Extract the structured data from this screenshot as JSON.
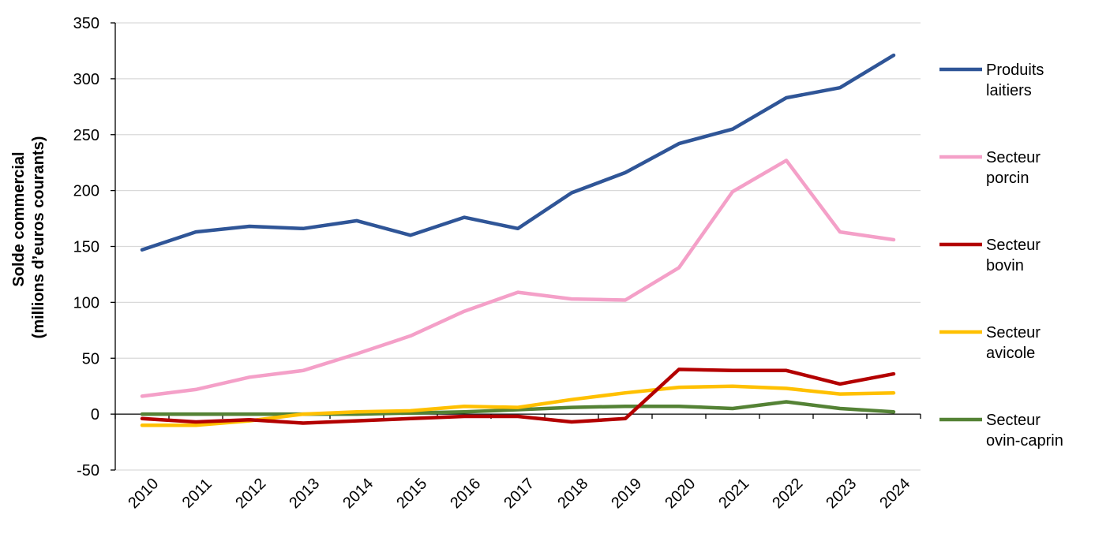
{
  "chart_data": {
    "type": "line",
    "title": "",
    "xlabel": "",
    "ylabel": [
      "Solde commercial",
      "(millions d’euros courants)"
    ],
    "ylim": [
      -50,
      350
    ],
    "yticks": [
      -50,
      0,
      50,
      100,
      150,
      200,
      250,
      300,
      350
    ],
    "grid": true,
    "legend_position": "right",
    "categories": [
      "2010",
      "2011",
      "2012",
      "2013",
      "2014",
      "2015",
      "2016",
      "2017",
      "2018",
      "2019",
      "2020",
      "2021",
      "2022",
      "2023",
      "2024"
    ],
    "series": [
      {
        "name": "Produits laitiers",
        "legend_lines": [
          "Produits",
          "laitiers"
        ],
        "color": "#2F5597",
        "values": [
          147,
          163,
          168,
          166,
          173,
          160,
          176,
          166,
          198,
          216,
          242,
          255,
          283,
          292,
          321
        ]
      },
      {
        "name": "Secteur porcin",
        "legend_lines": [
          "Secteur",
          "porcin"
        ],
        "color": "#F4A0C8",
        "values": [
          16,
          22,
          33,
          39,
          54,
          70,
          92,
          109,
          103,
          102,
          131,
          199,
          227,
          163,
          156
        ]
      },
      {
        "name": "Secteur bovin",
        "legend_lines": [
          "Secteur",
          "bovin"
        ],
        "color": "#B30000",
        "values": [
          -4,
          -7,
          -5,
          -8,
          -6,
          -4,
          -2,
          -2,
          -7,
          -4,
          40,
          39,
          39,
          27,
          36
        ]
      },
      {
        "name": "Secteur avicole",
        "legend_lines": [
          "Secteur",
          "avicole"
        ],
        "color": "#FFC000",
        "values": [
          -10,
          -10,
          -6,
          0,
          2,
          3,
          7,
          6,
          13,
          19,
          24,
          25,
          23,
          18,
          19
        ]
      },
      {
        "name": "Secteur ovin-caprin",
        "legend_lines": [
          "Secteur",
          "ovin-caprin"
        ],
        "color": "#548235",
        "values": [
          0,
          0,
          0,
          0,
          0,
          1,
          2,
          4,
          6,
          7,
          7,
          5,
          11,
          5,
          2
        ]
      }
    ]
  }
}
